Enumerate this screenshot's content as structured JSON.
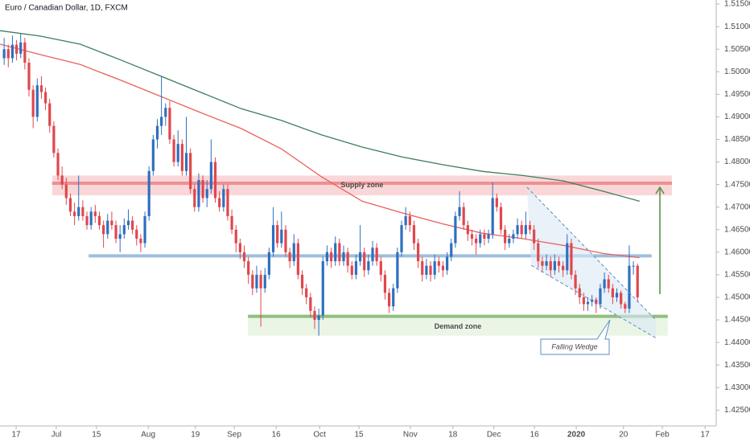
{
  "chart_data": {
    "type": "candlestick",
    "title": "Euro / Canadian Dollar, 1D, FXCM",
    "xlim": [
      -1,
      172
    ],
    "ylim": [
      1.4215,
      1.5159
    ],
    "grid": false,
    "up_color": "#2f6fbf",
    "down_color": "#e0474c",
    "yticks": [
      {
        "value": 1.515,
        "label": "1.51500"
      },
      {
        "value": 1.51,
        "label": "1.51000"
      },
      {
        "value": 1.505,
        "label": "1.50500"
      },
      {
        "value": 1.5,
        "label": "1.50000"
      },
      {
        "value": 1.495,
        "label": "1.49500"
      },
      {
        "value": 1.49,
        "label": "1.49000"
      },
      {
        "value": 1.485,
        "label": "1.48500"
      },
      {
        "value": 1.48,
        "label": "1.48000"
      },
      {
        "value": 1.475,
        "label": "1.47500"
      },
      {
        "value": 1.47,
        "label": "1.47000"
      },
      {
        "value": 1.465,
        "label": "1.46500"
      },
      {
        "value": 1.46,
        "label": "1.46000"
      },
      {
        "value": 1.455,
        "label": "1.45500"
      },
      {
        "value": 1.45,
        "label": "1.45000"
      },
      {
        "value": 1.445,
        "label": "1.44500"
      },
      {
        "value": 1.44,
        "label": "1.44000"
      },
      {
        "value": 1.435,
        "label": "1.43500"
      },
      {
        "value": 1.43,
        "label": "1.43000"
      },
      {
        "value": 1.425,
        "label": "1.42500"
      }
    ],
    "xticks": [
      {
        "value": 2.9,
        "label": "17"
      },
      {
        "value": 12.6,
        "label": "Jul"
      },
      {
        "value": 22.3,
        "label": "15"
      },
      {
        "value": 34.8,
        "label": "Aug"
      },
      {
        "value": 46.2,
        "label": "19"
      },
      {
        "value": 55.6,
        "label": "Sep"
      },
      {
        "value": 65.7,
        "label": "16"
      },
      {
        "value": 76.2,
        "label": "Oct"
      },
      {
        "value": 85.7,
        "label": "15"
      },
      {
        "value": 98.1,
        "label": "Nov"
      },
      {
        "value": 108.4,
        "label": "18"
      },
      {
        "value": 118.3,
        "label": "Dec"
      },
      {
        "value": 128.1,
        "label": "16"
      },
      {
        "value": 138.2,
        "label": "2020"
      },
      {
        "value": 149.6,
        "label": "20"
      },
      {
        "value": 159,
        "label": "Feb"
      },
      {
        "value": 169.3,
        "label": "17"
      }
    ],
    "candles": [
      [
        1.503,
        1.5075,
        1.5015,
        1.505
      ],
      [
        1.505,
        1.506,
        1.501,
        1.503
      ],
      [
        1.503,
        1.508,
        1.502,
        1.506
      ],
      [
        1.506,
        1.507,
        1.5025,
        1.504
      ],
      [
        1.504,
        1.5085,
        1.503,
        1.5065
      ],
      [
        1.5065,
        1.5075,
        1.5005,
        1.502
      ],
      [
        1.502,
        1.503,
        1.4945,
        1.496
      ],
      [
        1.496,
        1.497,
        1.4875,
        1.49
      ],
      [
        1.49,
        1.4985,
        1.489,
        1.497
      ],
      [
        1.497,
        1.499,
        1.494,
        1.4955
      ],
      [
        1.4955,
        1.4965,
        1.4915,
        1.493
      ],
      [
        1.493,
        1.494,
        1.4865,
        1.488
      ],
      [
        1.488,
        1.489,
        1.481,
        1.482
      ],
      [
        1.482,
        1.483,
        1.476,
        1.477
      ],
      [
        1.477,
        1.479,
        1.474,
        1.475
      ],
      [
        1.475,
        1.4765,
        1.4705,
        1.472
      ],
      [
        1.472,
        1.473,
        1.468,
        1.469
      ],
      [
        1.469,
        1.471,
        1.466,
        1.468
      ],
      [
        1.468,
        1.477,
        1.467,
        1.47
      ],
      [
        1.47,
        1.4715,
        1.467,
        1.468
      ],
      [
        1.468,
        1.469,
        1.465,
        1.466
      ],
      [
        1.466,
        1.47,
        1.465,
        1.469
      ],
      [
        1.469,
        1.4705,
        1.4665,
        1.468
      ],
      [
        1.468,
        1.469,
        1.465,
        1.466
      ],
      [
        1.466,
        1.467,
        1.461,
        1.464
      ],
      [
        1.464,
        1.4685,
        1.463,
        1.467
      ],
      [
        1.467,
        1.469,
        1.465,
        1.466
      ],
      [
        1.466,
        1.467,
        1.462,
        1.463
      ],
      [
        1.463,
        1.466,
        1.46,
        1.464
      ],
      [
        1.464,
        1.4675,
        1.463,
        1.466
      ],
      [
        1.466,
        1.4695,
        1.465,
        1.467
      ],
      [
        1.467,
        1.468,
        1.464,
        1.465
      ],
      [
        1.465,
        1.466,
        1.4615,
        1.463
      ],
      [
        1.463,
        1.464,
        1.46,
        1.462
      ],
      [
        1.462,
        1.469,
        1.461,
        1.468
      ],
      [
        1.468,
        1.479,
        1.467,
        1.478
      ],
      [
        1.478,
        1.486,
        1.477,
        1.485
      ],
      [
        1.485,
        1.4895,
        1.483,
        1.488
      ],
      [
        1.488,
        1.499,
        1.486,
        1.49
      ],
      [
        1.49,
        1.493,
        1.488,
        1.492
      ],
      [
        1.492,
        1.4935,
        1.484,
        1.485
      ],
      [
        1.485,
        1.486,
        1.479,
        1.48
      ],
      [
        1.48,
        1.487,
        1.479,
        1.484
      ],
      [
        1.484,
        1.485,
        1.477,
        1.478
      ],
      [
        1.478,
        1.49,
        1.477,
        1.482
      ],
      [
        1.482,
        1.483,
        1.473,
        1.474
      ],
      [
        1.474,
        1.475,
        1.469,
        1.47
      ],
      [
        1.47,
        1.4775,
        1.469,
        1.476
      ],
      [
        1.476,
        1.477,
        1.471,
        1.472
      ],
      [
        1.472,
        1.476,
        1.47,
        1.474
      ],
      [
        1.474,
        1.485,
        1.473,
        1.48
      ],
      [
        1.48,
        1.481,
        1.471,
        1.472
      ],
      [
        1.472,
        1.4735,
        1.469,
        1.47
      ],
      [
        1.47,
        1.475,
        1.469,
        1.474
      ],
      [
        1.474,
        1.475,
        1.467,
        1.468
      ],
      [
        1.468,
        1.4695,
        1.464,
        1.465
      ],
      [
        1.465,
        1.466,
        1.46,
        1.462
      ],
      [
        1.462,
        1.463,
        1.4585,
        1.46
      ],
      [
        1.46,
        1.4615,
        1.4565,
        1.458
      ],
      [
        1.458,
        1.459,
        1.453,
        1.455
      ],
      [
        1.455,
        1.456,
        1.4505,
        1.452
      ],
      [
        1.452,
        1.457,
        1.451,
        1.455
      ],
      [
        1.455,
        1.456,
        1.4435,
        1.452
      ],
      [
        1.452,
        1.4565,
        1.451,
        1.455
      ],
      [
        1.455,
        1.461,
        1.454,
        1.46
      ],
      [
        1.46,
        1.47,
        1.459,
        1.466
      ],
      [
        1.466,
        1.467,
        1.461,
        1.462
      ],
      [
        1.462,
        1.469,
        1.461,
        1.465
      ],
      [
        1.465,
        1.466,
        1.459,
        1.46
      ],
      [
        1.46,
        1.461,
        1.4565,
        1.458
      ],
      [
        1.458,
        1.464,
        1.457,
        1.462
      ],
      [
        1.462,
        1.463,
        1.454,
        1.455
      ],
      [
        1.455,
        1.456,
        1.4505,
        1.452
      ],
      [
        1.452,
        1.453,
        1.4485,
        1.45
      ],
      [
        1.45,
        1.451,
        1.4455,
        1.447
      ],
      [
        1.447,
        1.448,
        1.443,
        1.445
      ],
      [
        1.445,
        1.4475,
        1.4415,
        1.446
      ],
      [
        1.446,
        1.459,
        1.445,
        1.458
      ],
      [
        1.458,
        1.4615,
        1.457,
        1.46
      ],
      [
        1.46,
        1.461,
        1.4565,
        1.458
      ],
      [
        1.458,
        1.4635,
        1.457,
        1.462
      ],
      [
        1.462,
        1.463,
        1.457,
        1.458
      ],
      [
        1.458,
        1.4615,
        1.457,
        1.46
      ],
      [
        1.46,
        1.461,
        1.4555,
        1.457
      ],
      [
        1.457,
        1.458,
        1.454,
        1.455
      ],
      [
        1.455,
        1.4595,
        1.454,
        1.458
      ],
      [
        1.458,
        1.466,
        1.457,
        1.46
      ],
      [
        1.46,
        1.461,
        1.4545,
        1.456
      ],
      [
        1.456,
        1.4595,
        1.455,
        1.458
      ],
      [
        1.458,
        1.4625,
        1.457,
        1.461
      ],
      [
        1.461,
        1.462,
        1.457,
        1.458
      ],
      [
        1.458,
        1.459,
        1.4535,
        1.455
      ],
      [
        1.455,
        1.456,
        1.4495,
        1.451
      ],
      [
        1.451,
        1.452,
        1.4465,
        1.448
      ],
      [
        1.448,
        1.453,
        1.447,
        1.452
      ],
      [
        1.452,
        1.461,
        1.451,
        1.46
      ],
      [
        1.46,
        1.467,
        1.459,
        1.466
      ],
      [
        1.466,
        1.47,
        1.465,
        1.468
      ],
      [
        1.468,
        1.469,
        1.4645,
        1.466
      ],
      [
        1.466,
        1.467,
        1.4605,
        1.462
      ],
      [
        1.462,
        1.463,
        1.4565,
        1.458
      ],
      [
        1.458,
        1.459,
        1.4535,
        1.455
      ],
      [
        1.455,
        1.4585,
        1.454,
        1.457
      ],
      [
        1.457,
        1.458,
        1.4535,
        1.455
      ],
      [
        1.455,
        1.4595,
        1.454,
        1.458
      ],
      [
        1.458,
        1.459,
        1.4555,
        1.457
      ],
      [
        1.457,
        1.458,
        1.4545,
        1.456
      ],
      [
        1.456,
        1.46,
        1.455,
        1.459
      ],
      [
        1.459,
        1.463,
        1.458,
        1.462
      ],
      [
        1.462,
        1.469,
        1.461,
        1.468
      ],
      [
        1.468,
        1.4735,
        1.467,
        1.47
      ],
      [
        1.47,
        1.471,
        1.465,
        1.466
      ],
      [
        1.466,
        1.467,
        1.4625,
        1.464
      ],
      [
        1.464,
        1.465,
        1.4615,
        1.463
      ],
      [
        1.463,
        1.464,
        1.4595,
        1.462
      ],
      [
        1.462,
        1.465,
        1.461,
        1.464
      ],
      [
        1.464,
        1.465,
        1.4615,
        1.463
      ],
      [
        1.463,
        1.465,
        1.462,
        1.464
      ],
      [
        1.464,
        1.4755,
        1.463,
        1.472
      ],
      [
        1.472,
        1.473,
        1.469,
        1.47
      ],
      [
        1.47,
        1.471,
        1.464,
        1.465
      ],
      [
        1.465,
        1.466,
        1.4605,
        1.462
      ],
      [
        1.462,
        1.464,
        1.461,
        1.463
      ],
      [
        1.463,
        1.465,
        1.462,
        1.464
      ],
      [
        1.464,
        1.4675,
        1.463,
        1.466
      ],
      [
        1.466,
        1.467,
        1.463,
        1.464
      ],
      [
        1.464,
        1.469,
        1.463,
        1.466
      ],
      [
        1.466,
        1.467,
        1.464,
        1.465
      ],
      [
        1.465,
        1.466,
        1.4605,
        1.462
      ],
      [
        1.462,
        1.463,
        1.4565,
        1.458
      ],
      [
        1.458,
        1.459,
        1.4555,
        1.457
      ],
      [
        1.457,
        1.4595,
        1.456,
        1.458
      ],
      [
        1.458,
        1.459,
        1.4545,
        1.456
      ],
      [
        1.456,
        1.4595,
        1.455,
        1.458
      ],
      [
        1.458,
        1.459,
        1.4555,
        1.457
      ],
      [
        1.457,
        1.458,
        1.4545,
        1.456
      ],
      [
        1.456,
        1.464,
        1.455,
        1.462
      ],
      [
        1.462,
        1.463,
        1.454,
        1.455
      ],
      [
        1.455,
        1.456,
        1.4505,
        1.452
      ],
      [
        1.452,
        1.453,
        1.4485,
        1.45
      ],
      [
        1.45,
        1.451,
        1.447,
        1.4485
      ],
      [
        1.4485,
        1.45,
        1.447,
        1.449
      ],
      [
        1.449,
        1.4505,
        1.448,
        1.4495
      ],
      [
        1.4495,
        1.45,
        1.4465,
        1.4485
      ],
      [
        1.4485,
        1.453,
        1.4475,
        1.452
      ],
      [
        1.452,
        1.4555,
        1.451,
        1.454
      ],
      [
        1.454,
        1.455,
        1.451,
        1.452
      ],
      [
        1.452,
        1.453,
        1.4485,
        1.45
      ],
      [
        1.45,
        1.452,
        1.449,
        1.451
      ],
      [
        1.451,
        1.4515,
        1.4475,
        1.4485
      ],
      [
        1.4485,
        1.449,
        1.4465,
        1.4475
      ],
      [
        1.4475,
        1.4615,
        1.4465,
        1.457
      ],
      [
        1.457,
        1.458,
        1.455,
        1.457
      ],
      [
        1.457,
        1.4575,
        1.449,
        1.45
      ]
    ],
    "lines": [
      {
        "color": "#3e7d5a",
        "x": [
          -1,
          8.7,
          18.4,
          28.2,
          37.9,
          47.6,
          57.3,
          67.0,
          76.7,
          86.5,
          96.2,
          105.9,
          115.6,
          125.3,
          135.1,
          144.8,
          153.5
        ],
        "values": [
          1.5091,
          1.5079,
          1.5061,
          1.5026,
          1.499,
          1.4954,
          1.4918,
          1.4892,
          1.486,
          1.4833,
          1.4811,
          1.4794,
          1.4779,
          1.477,
          1.4758,
          1.4735,
          1.4713
        ]
      },
      {
        "color": "#e8615f",
        "x": [
          -1,
          8.7,
          18.4,
          28.2,
          37.9,
          47.6,
          57.3,
          67.0,
          76.7,
          86.5,
          96.2,
          105.9,
          115.6,
          125.3,
          135.1,
          144.8,
          153.5
        ],
        "values": [
          1.5061,
          1.5038,
          1.5016,
          1.4981,
          1.4945,
          1.4909,
          1.4874,
          1.4829,
          1.4767,
          1.4713,
          1.4687,
          1.4663,
          1.4642,
          1.463,
          1.4615,
          1.4597,
          1.4588
        ]
      }
    ],
    "zones": [
      {
        "label": "Supply zone",
        "x": [
          11.6,
          161.3
        ],
        "range": [
          1.4726,
          1.477
        ],
        "line": 1.4753,
        "fill": "#f7c9cb",
        "line_color": "#ef8f93",
        "text_color": "#e0474c"
      },
      {
        "label": "Demand zone",
        "x": [
          58.9,
          160.3
        ],
        "range": [
          1.4415,
          1.4455
        ],
        "line": 1.4458,
        "fill": "#e3f1de",
        "line_color": "#8fbf7f",
        "text_color": "#3f7f3a"
      }
    ],
    "level": {
      "x": [
        20.4,
        156.4
      ],
      "value": 1.4592,
      "color": "#9fbfdc"
    },
    "arrow": {
      "x": 158.4,
      "from": 1.4507,
      "to": 1.4744,
      "color": "#4f8f3f"
    },
    "wedge": {
      "upper": {
        "x": [
          126.3,
          157.4
        ],
        "values": [
          1.4744,
          1.445
        ]
      },
      "lower": {
        "x": [
          127.3,
          157.4
        ],
        "values": [
          1.4571,
          1.441
        ]
      },
      "label": "Falling Wedge"
    }
  }
}
